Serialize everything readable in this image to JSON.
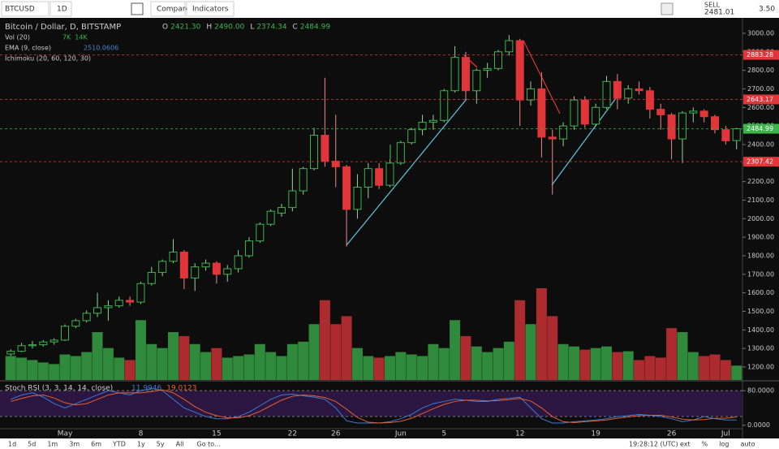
{
  "toolbar": {
    "symbol": "BTCUSD",
    "interval": "1D",
    "compare": "Compare",
    "indicators": "Indicators",
    "sell": "SELL",
    "sell_price": "2481.01",
    "spread": "3.50"
  },
  "chart_data": [
    {
      "type": "candlestick",
      "title": "Bitcoin / Dollar, D, BITSTAMP",
      "ohlc_legend": [
        {
          "key": "O",
          "value": "2421.30"
        },
        {
          "key": "H",
          "value": "2490.00"
        },
        {
          "key": "L",
          "value": "2374.34"
        },
        {
          "key": "C",
          "value": "2484.99"
        }
      ],
      "indicators": [
        {
          "name": "Vol (20)",
          "values": [
            "7K",
            "14K"
          ],
          "color": "#3cb44b"
        },
        {
          "name": "EMA (9, close)",
          "values": [
            "2510.0606"
          ],
          "color": "#4a86c8"
        },
        {
          "name": "Ichimoku (20, 60, 120, 30)"
        }
      ],
      "categories": [
        null,
        null,
        null,
        null,
        null,
        "May",
        null,
        null,
        null,
        null,
        null,
        null,
        "8",
        null,
        null,
        null,
        null,
        null,
        null,
        "15",
        null,
        null,
        null,
        null,
        null,
        null,
        "22",
        null,
        null,
        null,
        "26",
        null,
        null,
        null,
        null,
        null,
        "Jun",
        null,
        null,
        null,
        "5",
        null,
        null,
        null,
        null,
        null,
        null,
        "12",
        null,
        null,
        null,
        null,
        null,
        null,
        "19",
        null,
        null,
        null,
        null,
        null,
        null,
        "26",
        null,
        null,
        null,
        null,
        "Jul",
        null
      ],
      "candles": [
        [
          1270,
          1295,
          1260,
          1285
        ],
        [
          1285,
          1330,
          1280,
          1315
        ],
        [
          1315,
          1340,
          1300,
          1320
        ],
        [
          1320,
          1345,
          1310,
          1335
        ],
        [
          1335,
          1355,
          1320,
          1345
        ],
        [
          1345,
          1430,
          1340,
          1420
        ],
        [
          1420,
          1460,
          1410,
          1450
        ],
        [
          1450,
          1505,
          1440,
          1490
        ],
        [
          1490,
          1600,
          1470,
          1520
        ],
        [
          1520,
          1560,
          1450,
          1530
        ],
        [
          1530,
          1580,
          1520,
          1560
        ],
        [
          1560,
          1580,
          1530,
          1550
        ],
        [
          1550,
          1660,
          1540,
          1650
        ],
        [
          1650,
          1740,
          1640,
          1710
        ],
        [
          1710,
          1780,
          1690,
          1770
        ],
        [
          1770,
          1890,
          1760,
          1820
        ],
        [
          1820,
          1830,
          1620,
          1680
        ],
        [
          1680,
          1760,
          1610,
          1740
        ],
        [
          1740,
          1780,
          1720,
          1760
        ],
        [
          1760,
          1770,
          1650,
          1700
        ],
        [
          1700,
          1750,
          1660,
          1730
        ],
        [
          1730,
          1830,
          1710,
          1800
        ],
        [
          1800,
          1900,
          1790,
          1880
        ],
        [
          1880,
          1980,
          1870,
          1970
        ],
        [
          1970,
          2050,
          1960,
          2040
        ],
        [
          2030,
          2080,
          2010,
          2060
        ],
        [
          2060,
          2270,
          2040,
          2150
        ],
        [
          2150,
          2280,
          2130,
          2270
        ],
        [
          2270,
          2490,
          2260,
          2450
        ],
        [
          2450,
          2760,
          2280,
          2310
        ],
        [
          2310,
          2560,
          2170,
          2280
        ],
        [
          2280,
          2290,
          1850,
          2050
        ],
        [
          2050,
          2240,
          2000,
          2170
        ],
        [
          2170,
          2300,
          2110,
          2270
        ],
        [
          2270,
          2300,
          2160,
          2180
        ],
        [
          2180,
          2320,
          2170,
          2300
        ],
        [
          2300,
          2420,
          2290,
          2410
        ],
        [
          2410,
          2490,
          2400,
          2480
        ],
        [
          2480,
          2560,
          2450,
          2520
        ],
        [
          2520,
          2560,
          2480,
          2530
        ],
        [
          2530,
          2700,
          2520,
          2690
        ],
        [
          2690,
          2930,
          2680,
          2870
        ],
        [
          2870,
          2900,
          2640,
          2690
        ],
        [
          2690,
          2810,
          2620,
          2800
        ],
        [
          2800,
          2840,
          2760,
          2810
        ],
        [
          2810,
          2910,
          2800,
          2900
        ],
        [
          2900,
          2990,
          2880,
          2960
        ],
        [
          2960,
          2970,
          2500,
          2640
        ],
        [
          2640,
          2740,
          2610,
          2700
        ],
        [
          2700,
          2790,
          2330,
          2440
        ],
        [
          2440,
          2480,
          2130,
          2430
        ],
        [
          2430,
          2520,
          2390,
          2500
        ],
        [
          2500,
          2660,
          2480,
          2640
        ],
        [
          2640,
          2660,
          2490,
          2510
        ],
        [
          2510,
          2620,
          2500,
          2600
        ],
        [
          2600,
          2770,
          2590,
          2740
        ],
        [
          2740,
          2780,
          2590,
          2650
        ],
        [
          2650,
          2720,
          2620,
          2700
        ],
        [
          2700,
          2740,
          2670,
          2690
        ],
        [
          2690,
          2710,
          2540,
          2590
        ],
        [
          2590,
          2620,
          2480,
          2560
        ],
        [
          2560,
          2570,
          2320,
          2430
        ],
        [
          2430,
          2580,
          2300,
          2570
        ],
        [
          2570,
          2600,
          2520,
          2580
        ],
        [
          2580,
          2590,
          2520,
          2550
        ],
        [
          2550,
          2560,
          2460,
          2480
        ],
        [
          2480,
          2500,
          2400,
          2420
        ],
        [
          2421.3,
          2490.0,
          2374.34,
          2484.99
        ]
      ],
      "volume": [
        30,
        28,
        25,
        22,
        20,
        32,
        30,
        35,
        60,
        40,
        28,
        25,
        75,
        45,
        40,
        60,
        55,
        45,
        35,
        40,
        28,
        30,
        32,
        45,
        35,
        30,
        45,
        48,
        70,
        100,
        70,
        80,
        40,
        30,
        28,
        30,
        35,
        32,
        30,
        45,
        40,
        75,
        55,
        42,
        35,
        40,
        48,
        100,
        70,
        115,
        80,
        45,
        42,
        38,
        40,
        42,
        35,
        36,
        25,
        30,
        28,
        65,
        60,
        35,
        30,
        32,
        25,
        18
      ],
      "up_color": "#3cb44b",
      "down_color": "#e0363a",
      "ylim": [
        1130,
        3083
      ],
      "yticks": [
        {
          "value": 1200,
          "label": "1200.00"
        },
        {
          "value": 1300,
          "label": "1300.00"
        },
        {
          "value": 1400,
          "label": "1400.00"
        },
        {
          "value": 1500,
          "label": "1500.00"
        },
        {
          "value": 1600,
          "label": "1600.00"
        },
        {
          "value": 1700,
          "label": "1700.00"
        },
        {
          "value": 1800,
          "label": "1800.00"
        },
        {
          "value": 1900,
          "label": "1900.00"
        },
        {
          "value": 2000,
          "label": "2000.00"
        },
        {
          "value": 2100,
          "label": "2100.00"
        },
        {
          "value": 2200,
          "label": "2200.00"
        },
        {
          "value": 2300,
          "label": "2300.00"
        },
        {
          "value": 2400,
          "label": "2400.00"
        },
        {
          "value": 2500,
          "label": "2500.00"
        },
        {
          "value": 2600,
          "label": "2600.00"
        },
        {
          "value": 2700,
          "label": "2700.00"
        },
        {
          "value": 2800,
          "label": "2800.00"
        },
        {
          "value": 2900,
          "label": "2900.00"
        },
        {
          "value": 3000,
          "label": "3000.00"
        }
      ],
      "price_lines": [
        {
          "value": 2883.28,
          "color": "#e0363a"
        },
        {
          "value": 2643.17,
          "color": "#e0363a"
        },
        {
          "value": 2484.99,
          "color": "#3cb44b"
        },
        {
          "value": 2307.42,
          "color": "#e0363a"
        }
      ]
    },
    {
      "type": "line",
      "title": "Stoch RSI (3, 3, 14, 14, close)",
      "series": [
        {
          "color": "#3d7ad6",
          "values": [
            60,
            70,
            75,
            65,
            50,
            40,
            50,
            60,
            70,
            80,
            75,
            70,
            80,
            85,
            80,
            60,
            40,
            30,
            20,
            15,
            15,
            20,
            30,
            45,
            60,
            70,
            72,
            68,
            65,
            60,
            40,
            10,
            5,
            5,
            5,
            8,
            15,
            25,
            40,
            50,
            55,
            60,
            58,
            55,
            55,
            60,
            62,
            65,
            40,
            15,
            5,
            5,
            8,
            10,
            12,
            15,
            20,
            22,
            25,
            23,
            20,
            15,
            8,
            12,
            20,
            15,
            12,
            11.9946
          ]
        },
        {
          "color": "#e8602c",
          "values": [
            55,
            62,
            68,
            70,
            63,
            52,
            47,
            50,
            60,
            70,
            75,
            75,
            75,
            78,
            82,
            75,
            60,
            43,
            30,
            22,
            17,
            17,
            22,
            32,
            45,
            58,
            67,
            70,
            68,
            64,
            55,
            37,
            18,
            7,
            5,
            6,
            9,
            16,
            27,
            38,
            48,
            55,
            58,
            58,
            56,
            57,
            59,
            62,
            56,
            40,
            20,
            8,
            6,
            8,
            10,
            12,
            16,
            19,
            22,
            23,
            23,
            19,
            14,
            12,
            13,
            16,
            16,
            19.0123
          ]
        }
      ],
      "ylim": [
        -27,
        101
      ],
      "yticks": [
        {
          "value": 80,
          "label": "80.0000"
        },
        {
          "value": 0,
          "label": "0.0000"
        }
      ],
      "band": [
        20,
        80
      ]
    }
  ],
  "bottom_bar": {
    "ranges": [
      "1d",
      "5d",
      "1m",
      "3m",
      "6m",
      "YTD",
      "1y",
      "5y",
      "All"
    ],
    "goto": "Go to...",
    "clock": "19:28:12 (UTC)",
    "options": [
      "ext",
      "%",
      "log",
      "auto"
    ]
  }
}
